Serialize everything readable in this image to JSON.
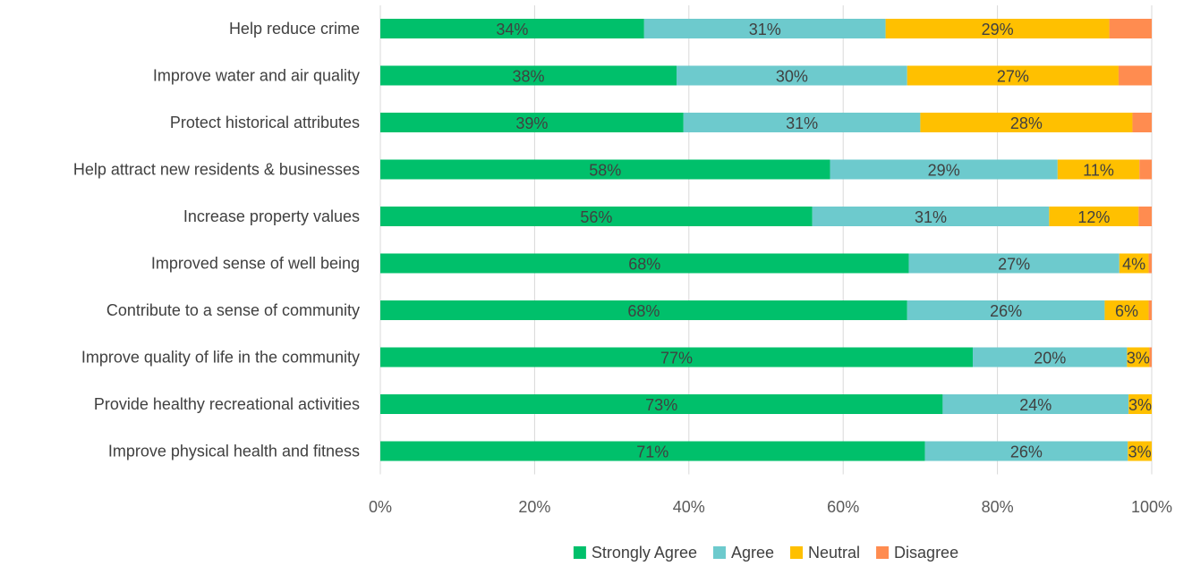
{
  "chart_data": {
    "type": "bar",
    "orientation": "horizontal",
    "stacked": "100%",
    "title": "",
    "xlabel": "",
    "ylabel": "",
    "xlim": [
      0,
      100
    ],
    "grid": "vertical",
    "legend_position": "bottom",
    "categories": [
      "Help reduce crime",
      "Improve water and air quality",
      "Protect historical attributes",
      "Help attract new residents & businesses",
      "Increase property values",
      "Improved sense of well being",
      "Contribute to a sense of community",
      "Improve quality of life in the community",
      "Provide healthy recreational activities",
      "Improve physical health and fitness"
    ],
    "x_ticks": [
      "0%",
      "20%",
      "40%",
      "60%",
      "80%",
      "100%"
    ],
    "series": [
      {
        "name": "Strongly Agree",
        "color": "#00c06b",
        "values": [
          34.2,
          38.4,
          39.3,
          58.3,
          56.0,
          68.5,
          68.3,
          76.8,
          72.9,
          70.6
        ],
        "labels": [
          "34%",
          "38%",
          "39%",
          "58%",
          "56%",
          "68%",
          "68%",
          "77%",
          "73%",
          "71%"
        ]
      },
      {
        "name": "Agree",
        "color": "#6dcacd",
        "values": [
          31.3,
          29.9,
          30.7,
          29.5,
          30.7,
          27.3,
          25.6,
          20.0,
          24.1,
          26.3
        ],
        "labels": [
          "31%",
          "30%",
          "31%",
          "29%",
          "31%",
          "27%",
          "26%",
          "20%",
          "24%",
          "26%"
        ]
      },
      {
        "name": "Neutral",
        "color": "#ffc000",
        "values": [
          29.0,
          27.4,
          27.5,
          10.6,
          11.6,
          3.8,
          5.7,
          2.9,
          3.0,
          3.1
        ],
        "labels": [
          "29%",
          "27%",
          "28%",
          "11%",
          "12%",
          "4%",
          "6%",
          "3%",
          "3%",
          "3%"
        ]
      },
      {
        "name": "Disagree",
        "color": "#ff8c50",
        "values": [
          5.5,
          4.3,
          2.5,
          1.6,
          1.7,
          0.4,
          0.4,
          0.3,
          0.0,
          0.0
        ],
        "labels": [
          "",
          "",
          "",
          "",
          "",
          "",
          "",
          "",
          "",
          ""
        ]
      }
    ]
  }
}
